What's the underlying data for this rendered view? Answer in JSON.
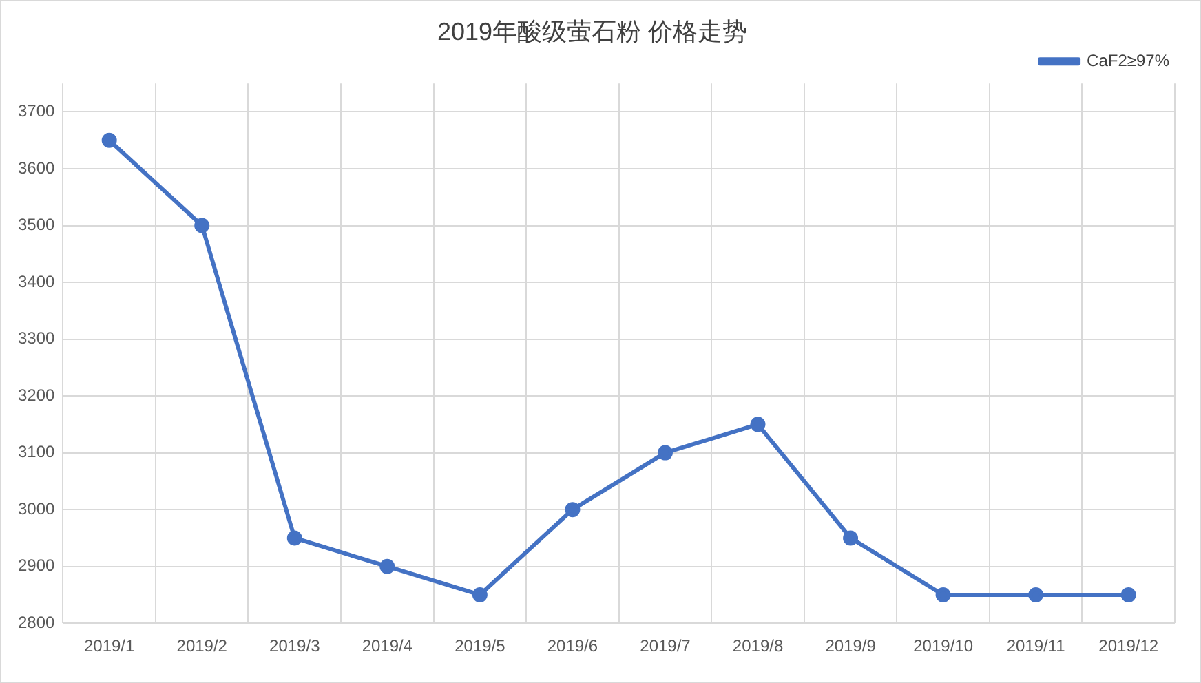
{
  "chart_data": {
    "type": "line",
    "title": "2019年酸级萤石粉 价格走势",
    "categories": [
      "2019/1",
      "2019/2",
      "2019/3",
      "2019/4",
      "2019/5",
      "2019/6",
      "2019/7",
      "2019/8",
      "2019/9",
      "2019/10",
      "2019/11",
      "2019/12"
    ],
    "series": [
      {
        "name": "CaF2≥97%",
        "color": "#4472c4",
        "values": [
          3650,
          3500,
          2950,
          2900,
          2850,
          3000,
          3100,
          3150,
          2950,
          2850,
          2850,
          2850
        ]
      }
    ],
    "ylim": [
      2800,
      3750
    ],
    "yticks": [
      2800,
      2900,
      3000,
      3100,
      3200,
      3300,
      3400,
      3500,
      3600,
      3700
    ],
    "grid": true,
    "legend": "top right",
    "marker": "circle",
    "line_style": "solid"
  }
}
